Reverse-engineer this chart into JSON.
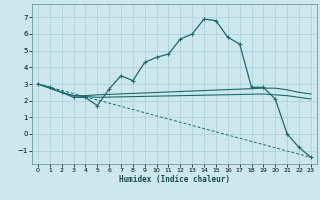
{
  "title": "",
  "xlabel": "Humidex (Indice chaleur)",
  "xlim": [
    -0.5,
    23.5
  ],
  "ylim": [
    -1.8,
    7.8
  ],
  "xticks": [
    0,
    1,
    2,
    3,
    4,
    5,
    6,
    7,
    8,
    9,
    10,
    11,
    12,
    13,
    14,
    15,
    16,
    17,
    18,
    19,
    20,
    21,
    22,
    23
  ],
  "yticks": [
    -1,
    0,
    1,
    2,
    3,
    4,
    5,
    6,
    7
  ],
  "bg_color": "#cce8ee",
  "grid_color": "#aacdd6",
  "line_color": "#1a6b6b",
  "series0_x": [
    0,
    1,
    2,
    3,
    4,
    5,
    6,
    7,
    8,
    9,
    10,
    11,
    12,
    13,
    14,
    15,
    16,
    17,
    18,
    19,
    20,
    21,
    22,
    23
  ],
  "series0_y": [
    3.0,
    2.8,
    2.5,
    2.2,
    2.2,
    1.7,
    2.7,
    3.5,
    3.2,
    4.3,
    4.6,
    4.8,
    5.7,
    6.0,
    6.9,
    6.8,
    5.8,
    5.4,
    2.8,
    2.8,
    2.1,
    0.0,
    -0.8,
    -1.4
  ],
  "series1_x": [
    0,
    2,
    3,
    4,
    5,
    19,
    20,
    21,
    22,
    23
  ],
  "series1_y": [
    3.0,
    2.5,
    2.3,
    2.3,
    2.35,
    2.75,
    2.75,
    2.65,
    2.5,
    2.4
  ],
  "series2_x": [
    0,
    2,
    3,
    4,
    5,
    19,
    20,
    21,
    22,
    23
  ],
  "series2_y": [
    3.0,
    2.5,
    2.3,
    2.25,
    2.2,
    2.4,
    2.35,
    2.3,
    2.2,
    2.1
  ],
  "series3_x": [
    0,
    23
  ],
  "series3_y": [
    3.0,
    -1.4
  ]
}
